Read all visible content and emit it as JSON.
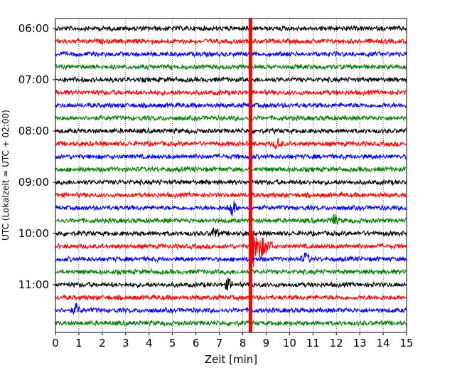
{
  "chart_data": {
    "type": "line",
    "title": "",
    "xlabel": "Zeit  [min]",
    "ylabel": "UTC (Lokalzeit = UTC + 02:00)",
    "xlim": [
      0,
      15
    ],
    "x_ticks": [
      "0",
      "1",
      "2",
      "3",
      "4",
      "5",
      "6",
      "7",
      "8",
      "9",
      "10",
      "11",
      "12",
      "13",
      "14",
      "15"
    ],
    "y_tick_labels": [
      "06:00",
      "07:00",
      "08:00",
      "09:00",
      "10:00",
      "11:00"
    ],
    "grid": "vertical dotted",
    "legend": "none",
    "trace_interval_minutes": 15,
    "trace_colors": [
      "#000000",
      "#ff0000",
      "#0000ff",
      "#008000"
    ],
    "traces": [
      {
        "start": "06:00",
        "color": "#000000"
      },
      {
        "start": "06:15",
        "color": "#ff0000"
      },
      {
        "start": "06:30",
        "color": "#0000ff"
      },
      {
        "start": "06:45",
        "color": "#008000"
      },
      {
        "start": "07:00",
        "color": "#000000"
      },
      {
        "start": "07:15",
        "color": "#ff0000"
      },
      {
        "start": "07:30",
        "color": "#0000ff"
      },
      {
        "start": "07:45",
        "color": "#008000"
      },
      {
        "start": "08:00",
        "color": "#000000"
      },
      {
        "start": "08:15",
        "color": "#ff0000"
      },
      {
        "start": "08:30",
        "color": "#0000ff"
      },
      {
        "start": "08:45",
        "color": "#008000"
      },
      {
        "start": "09:00",
        "color": "#000000"
      },
      {
        "start": "09:15",
        "color": "#ff0000"
      },
      {
        "start": "09:30",
        "color": "#0000ff"
      },
      {
        "start": "09:45",
        "color": "#008000"
      },
      {
        "start": "10:00",
        "color": "#000000"
      },
      {
        "start": "10:15",
        "color": "#ff0000"
      },
      {
        "start": "10:30",
        "color": "#0000ff"
      },
      {
        "start": "10:45",
        "color": "#008000"
      },
      {
        "start": "11:00",
        "color": "#000000"
      },
      {
        "start": "11:15",
        "color": "#ff0000"
      },
      {
        "start": "11:30",
        "color": "#0000ff"
      },
      {
        "start": "11:45",
        "color": "#008000"
      }
    ],
    "events": [
      {
        "trace": "09:30",
        "x_min": 7.55,
        "amplitude": "medium"
      },
      {
        "trace": "09:45",
        "x_min": 11.9,
        "amplitude": "small"
      },
      {
        "trace": "10:00",
        "x_min": 6.8,
        "amplitude": "small"
      },
      {
        "trace": "10:15",
        "x_min": 8.4,
        "amplitude": "large"
      },
      {
        "trace": "10:30",
        "x_min": 10.7,
        "amplitude": "small"
      },
      {
        "trace": "08:15",
        "x_min": 9.5,
        "amplitude": "small"
      },
      {
        "trace": "11:00",
        "x_min": 7.4,
        "amplitude": "small"
      },
      {
        "trace": "11:30",
        "x_min": 0.9,
        "amplitude": "small"
      }
    ],
    "marker_line": {
      "x_min": 8.33,
      "color": "#ff0000"
    }
  }
}
